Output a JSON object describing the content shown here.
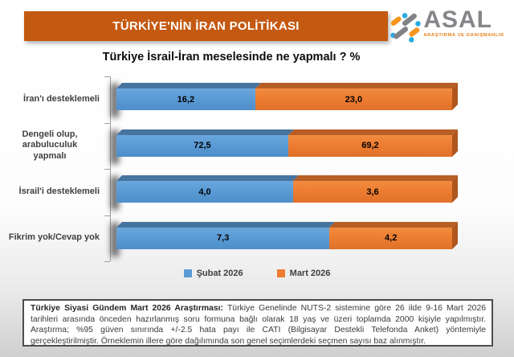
{
  "header": {
    "title": "TÜRKİYE'NİN İRAN POLİTİKASI"
  },
  "logo": {
    "name": "ASAL",
    "subtitle": "ARAŞTIRMA VE DANIŞMANLIK"
  },
  "chart_data": {
    "type": "bar",
    "subtype": "horizontal-100pct-stacked-3d",
    "title": "Türkiye İsrail-İran meselesinde ne yapmalı ? %",
    "categories": [
      "İran'ı desteklemeli",
      "Dengeli olup, arabuluculuk\nyapmalı",
      "İsrail'i desteklemeli",
      "Fikrim yok/Cevap yok"
    ],
    "series": [
      {
        "name": "Şubat 2026",
        "color": "#5B9BD5",
        "values": [
          16.2,
          72.5,
          4.0,
          7.3
        ]
      },
      {
        "name": "Mart 2026",
        "color": "#ED7D31",
        "values": [
          23.0,
          69.2,
          3.6,
          4.2
        ]
      }
    ],
    "value_labels": {
      "Şubat 2026": [
        "16,2",
        "72,5",
        "4,0",
        "7,3"
      ],
      "Mart 2026": [
        "23,0",
        "69,2",
        "3,6",
        "4,2"
      ]
    },
    "legend_position": "bottom",
    "axis": "categories-on-left",
    "grid": false
  },
  "footer": {
    "lead": "Türkiye Siyasi Gündem Mart 2026 Araştırması:",
    "body": " Türkiye Genelinde NUTS-2 sistemine göre 26 ilde 9-16 Mart 2026 tarihleri arasında önceden hazırlanmış soru formuna bağlı olarak 18 yaş ve üzeri toplamda 2000 kişiyle yapılmıştır. Araştırma; %95 güven sınırında +/-2.5 hata payı ile CATI (Bilgisayar Destekli Telefonda Anket) yöntemiyle gerçekleştirilmiştir. Örneklemin illere göre dağılımında son genel seçimlerdeki seçmen sayısı baz alınmıştır."
  },
  "colors": {
    "banner": "#C45911",
    "blue_front": "#5B9BD5",
    "blue_top": "#47749F",
    "orange_front": "#ED7D31",
    "orange_top": "#B65E24",
    "orange_side": "#AE561E",
    "logo_gray": "#848689",
    "logo_orange": "#E8821E",
    "logo_blue": "#29ABE2",
    "value_text": "#000000",
    "category_text": "#404040"
  }
}
